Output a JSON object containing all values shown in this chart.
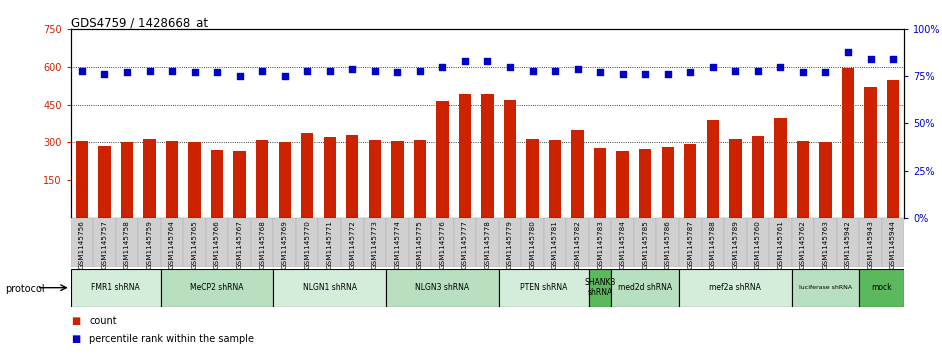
{
  "title": "GDS4759 / 1428668_at",
  "samples": [
    "GSM1145756",
    "GSM1145757",
    "GSM1145758",
    "GSM1145759",
    "GSM1145764",
    "GSM1145765",
    "GSM1145766",
    "GSM1145767",
    "GSM1145768",
    "GSM1145769",
    "GSM1145770",
    "GSM1145771",
    "GSM1145772",
    "GSM1145773",
    "GSM1145774",
    "GSM1145775",
    "GSM1145776",
    "GSM1145777",
    "GSM1145778",
    "GSM1145779",
    "GSM1145780",
    "GSM1145781",
    "GSM1145782",
    "GSM1145783",
    "GSM1145784",
    "GSM1145785",
    "GSM1145786",
    "GSM1145787",
    "GSM1145788",
    "GSM1145789",
    "GSM1145760",
    "GSM1145761",
    "GSM1145762",
    "GSM1145763",
    "GSM1145942",
    "GSM1145943",
    "GSM1145944"
  ],
  "counts": [
    305,
    285,
    300,
    315,
    305,
    300,
    270,
    265,
    310,
    300,
    335,
    320,
    330,
    310,
    305,
    310,
    465,
    490,
    490,
    470,
    315,
    308,
    348,
    278,
    265,
    275,
    282,
    295,
    390,
    315,
    325,
    395,
    305,
    300,
    595,
    520,
    548
  ],
  "percentiles": [
    78,
    76,
    77,
    78,
    78,
    77,
    77,
    75,
    78,
    75,
    78,
    78,
    79,
    78,
    77,
    78,
    80,
    83,
    83,
    80,
    78,
    78,
    79,
    77,
    76,
    76,
    76,
    77,
    80,
    78,
    78,
    80,
    77,
    77,
    88,
    84,
    84
  ],
  "groups": [
    {
      "label": "FMR1 shRNA",
      "start": 0,
      "end": 4,
      "color": "#d4edda"
    },
    {
      "label": "MeCP2 shRNA",
      "start": 4,
      "end": 9,
      "color": "#b8dfc0"
    },
    {
      "label": "NLGN1 shRNA",
      "start": 9,
      "end": 14,
      "color": "#d4edda"
    },
    {
      "label": "NLGN3 shRNA",
      "start": 14,
      "end": 19,
      "color": "#b8dfc0"
    },
    {
      "label": "PTEN shRNA",
      "start": 19,
      "end": 23,
      "color": "#d4edda"
    },
    {
      "label": "SHANK3\nshRNA",
      "start": 23,
      "end": 24,
      "color": "#5cb85c"
    },
    {
      "label": "med2d shRNA",
      "start": 24,
      "end": 27,
      "color": "#b8dfc0"
    },
    {
      "label": "mef2a shRNA",
      "start": 27,
      "end": 32,
      "color": "#d4edda"
    },
    {
      "label": "luciferase shRNA",
      "start": 32,
      "end": 35,
      "color": "#b8dfc0"
    },
    {
      "label": "mock",
      "start": 35,
      "end": 37,
      "color": "#5cb85c"
    }
  ],
  "bar_color": "#cc2200",
  "dot_color": "#0000cc",
  "ylim_left": [
    0,
    750
  ],
  "yticks_left": [
    150,
    300,
    450,
    600,
    750
  ],
  "ylim_right": [
    0,
    100
  ],
  "yticks_right": [
    0,
    25,
    50,
    75,
    100
  ],
  "bg_color": "#ffffff",
  "tick_bg_color": "#d0d0d0",
  "grid_color": "#000000",
  "dot_size": 18
}
